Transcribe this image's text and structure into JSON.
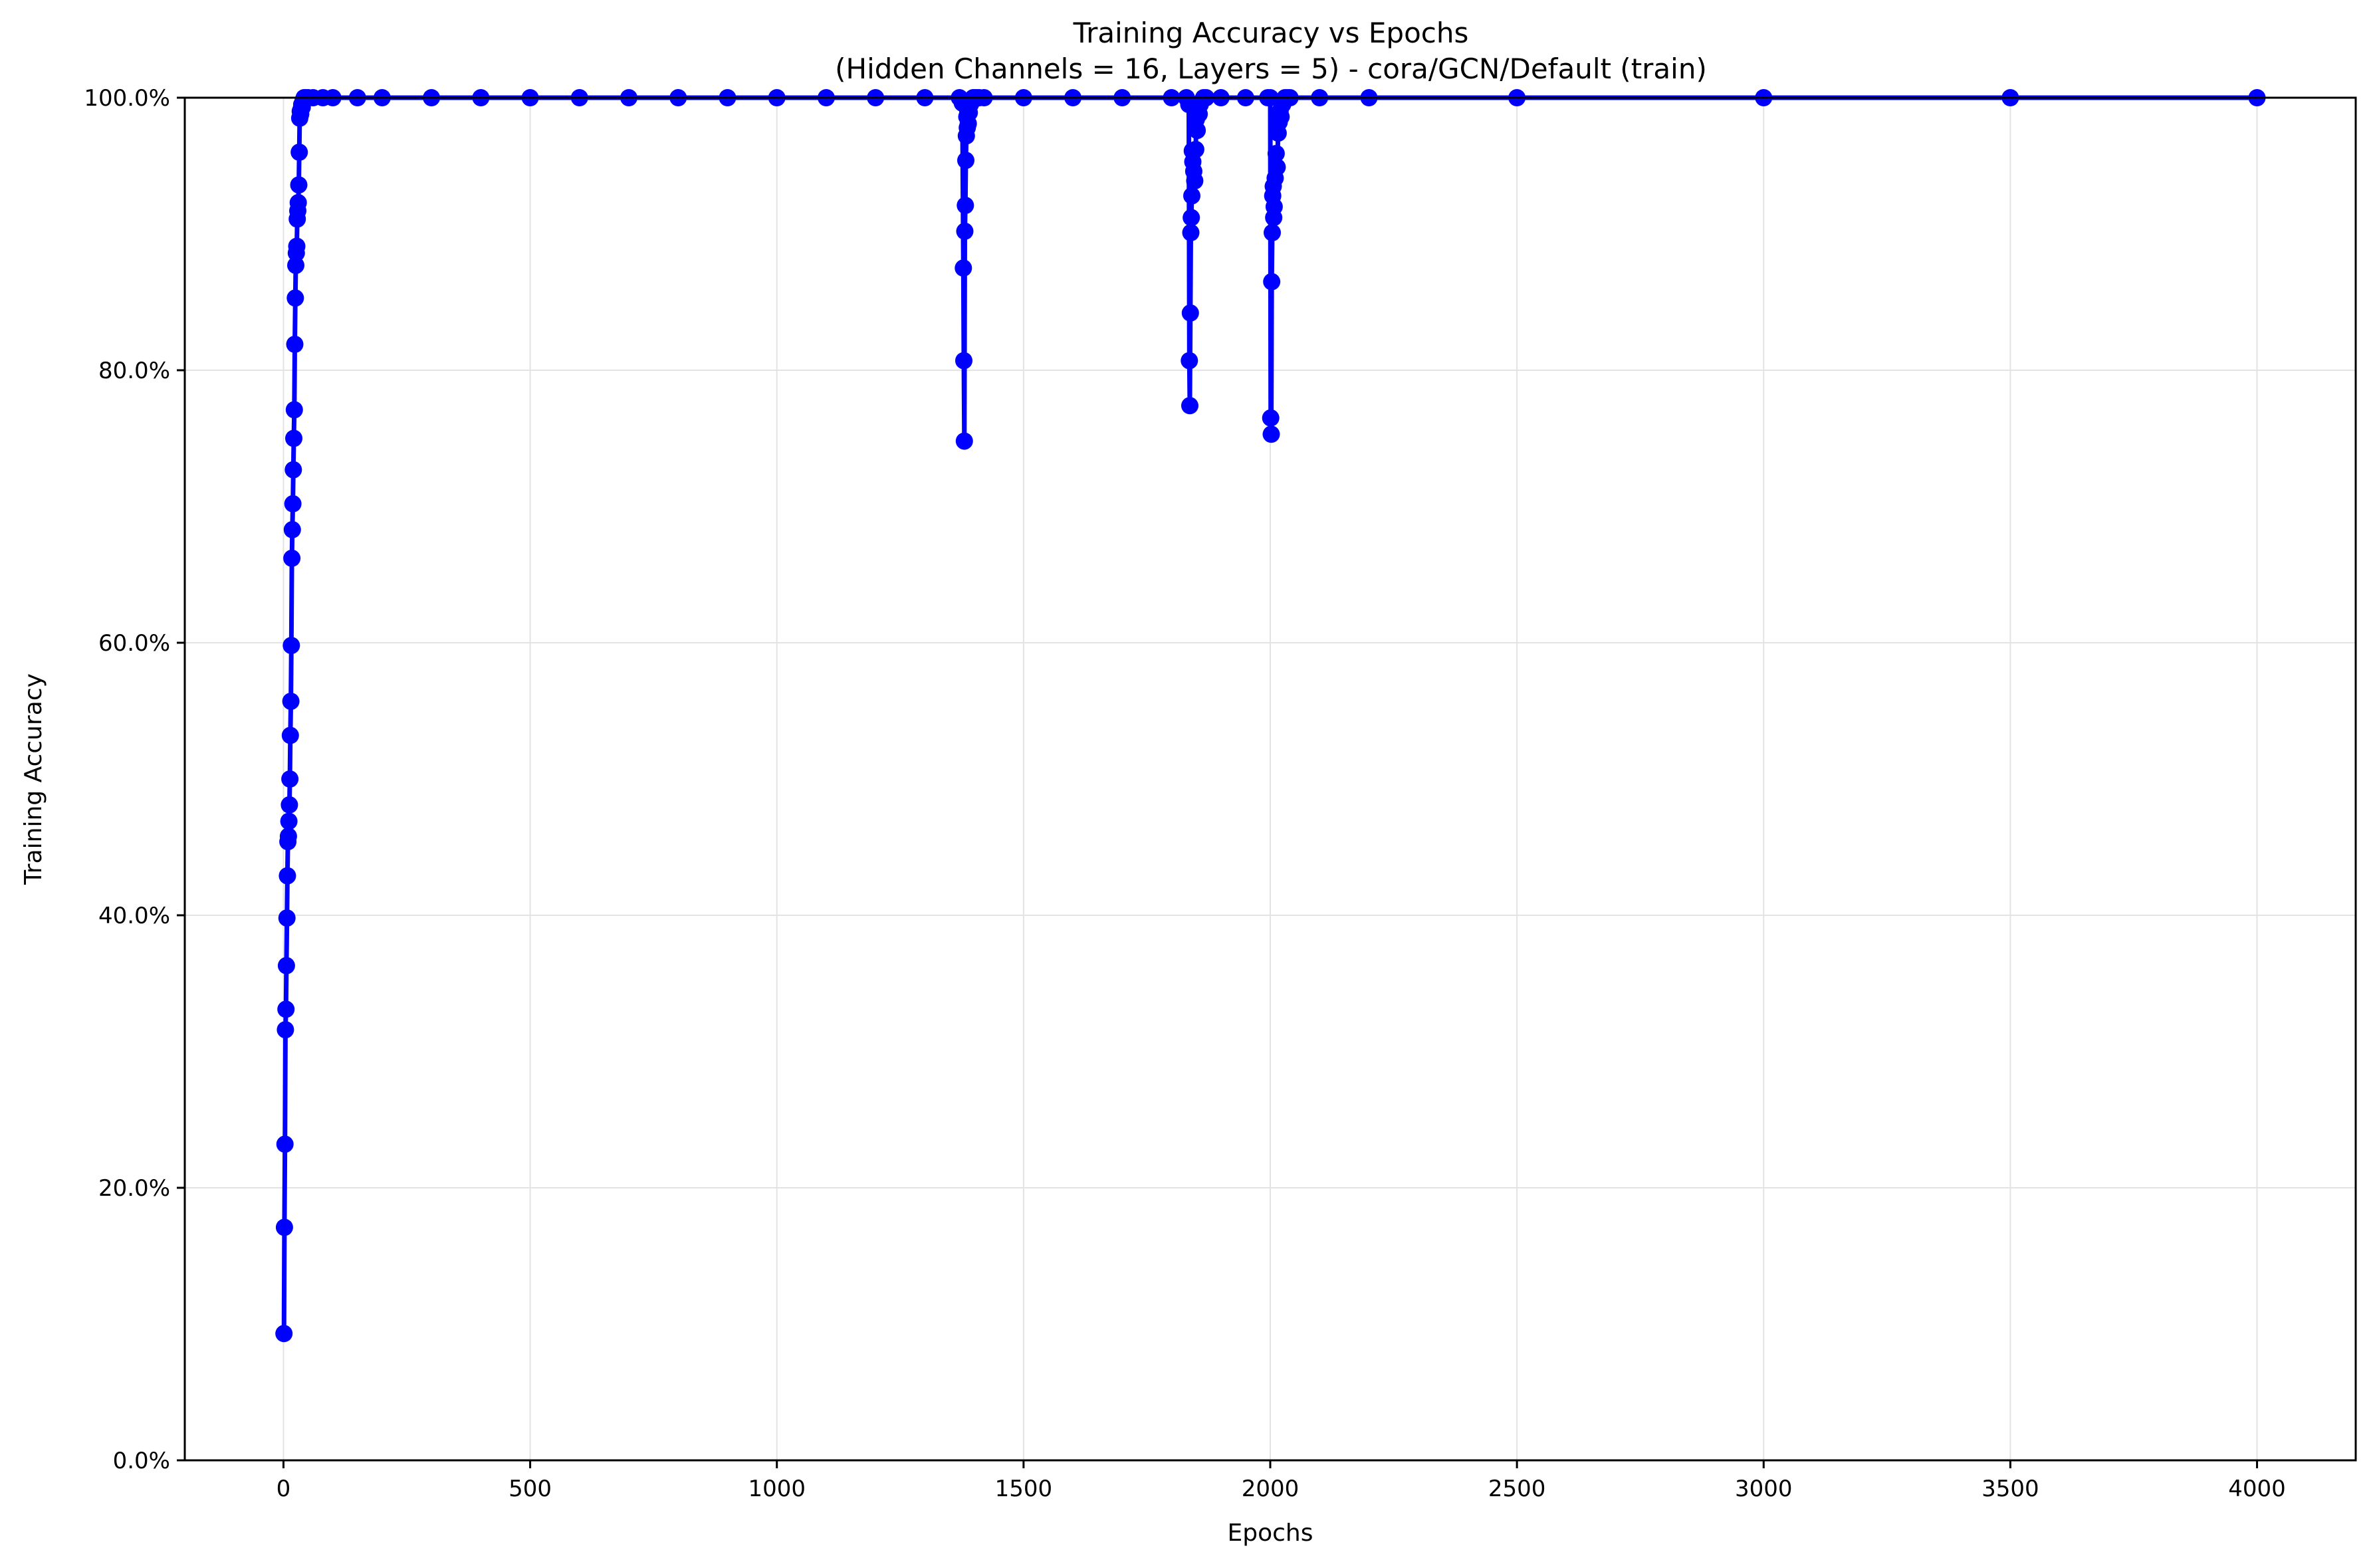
{
  "chart_data": {
    "type": "line",
    "title": "Training Accuracy vs Epochs",
    "subtitle": "(Hidden Channels = 16, Layers = 5) - cora/GCN/Default (train)",
    "xlabel": "Epochs",
    "ylabel": "Training Accuracy",
    "xlim": [
      -200,
      4200
    ],
    "ylim": [
      0,
      100
    ],
    "xticks": [
      0,
      500,
      1000,
      1500,
      2000,
      2500,
      3000,
      3500,
      4000
    ],
    "xtick_labels": [
      "0",
      "500",
      "1000",
      "1500",
      "2000",
      "2500",
      "3000",
      "3500",
      "4000"
    ],
    "yticks": [
      0,
      20,
      40,
      60,
      80,
      100
    ],
    "ytick_labels": [
      "0.0%",
      "20.0%",
      "40.0%",
      "60.0%",
      "80.0%",
      "100.0%"
    ],
    "grid": true,
    "legend": "none",
    "series": [
      {
        "color": "#0000ff",
        "marker": "circle",
        "x": [
          1,
          2,
          3,
          4,
          5,
          6,
          7,
          8,
          9,
          10,
          11,
          12,
          13,
          14,
          15,
          16,
          17,
          18,
          19,
          20,
          21,
          22,
          23,
          24,
          25,
          26,
          27,
          28,
          29,
          30,
          31,
          32,
          33,
          34,
          35,
          36,
          37,
          38,
          39,
          40,
          42,
          45,
          50,
          60,
          80,
          100,
          150,
          200,
          300,
          400,
          500,
          600,
          700,
          800,
          900,
          1000,
          1100,
          1200,
          1300,
          1370,
          1376,
          1378,
          1379,
          1380,
          1381,
          1382,
          1383,
          1384,
          1385,
          1386,
          1387,
          1388,
          1389,
          1390,
          1392,
          1395,
          1398,
          1400,
          1405,
          1410,
          1420,
          1500,
          1600,
          1700,
          1800,
          1830,
          1835,
          1836,
          1837,
          1838,
          1839,
          1840,
          1841,
          1842,
          1843,
          1845,
          1847,
          1849,
          1850,
          1852,
          1854,
          1856,
          1858,
          1860,
          1865,
          1870,
          1900,
          1950,
          1995,
          2000,
          2001,
          2002,
          2003,
          2004,
          2005,
          2006,
          2007,
          2008,
          2010,
          2012,
          2014,
          2016,
          2018,
          2020,
          2022,
          2025,
          2030,
          2035,
          2040,
          2100,
          2200,
          2500,
          3000,
          3500,
          4000
        ],
        "y": [
          9.3,
          17.1,
          23.2,
          31.6,
          33.1,
          36.3,
          39.8,
          42.9,
          45.4,
          45.8,
          46.9,
          48.1,
          50.0,
          53.2,
          55.7,
          59.8,
          66.2,
          68.3,
          70.2,
          72.7,
          75.0,
          77.1,
          81.9,
          85.3,
          87.7,
          88.6,
          89.1,
          91.1,
          91.7,
          92.3,
          93.6,
          96.0,
          98.5,
          99.0,
          98.8,
          99.2,
          99.5,
          99.3,
          99.6,
          99.8,
          100,
          100,
          100,
          100,
          100,
          100,
          100,
          100,
          100,
          100,
          100,
          100,
          100,
          100,
          100,
          100,
          100,
          100,
          100,
          100,
          99.6,
          87.5,
          80.7,
          74.8,
          90.2,
          92.1,
          95.4,
          97.2,
          98.6,
          97.8,
          99.0,
          98.1,
          99.3,
          98.9,
          99.5,
          99.7,
          100,
          100,
          100,
          100,
          100,
          100,
          100,
          100,
          100,
          100,
          99.5,
          80.7,
          77.4,
          84.2,
          90.1,
          91.2,
          92.8,
          96.1,
          95.3,
          94.6,
          93.9,
          96.2,
          98.4,
          97.6,
          99.1,
          98.8,
          99.5,
          99.7,
          100,
          100,
          100,
          100,
          100,
          100,
          76.5,
          75.3,
          86.5,
          90.1,
          92.8,
          93.5,
          91.2,
          92.0,
          94.1,
          95.9,
          94.9,
          97.4,
          98.2,
          99.0,
          98.6,
          99.5,
          100,
          100,
          100,
          100,
          100,
          100,
          100,
          100,
          100
        ]
      }
    ]
  }
}
